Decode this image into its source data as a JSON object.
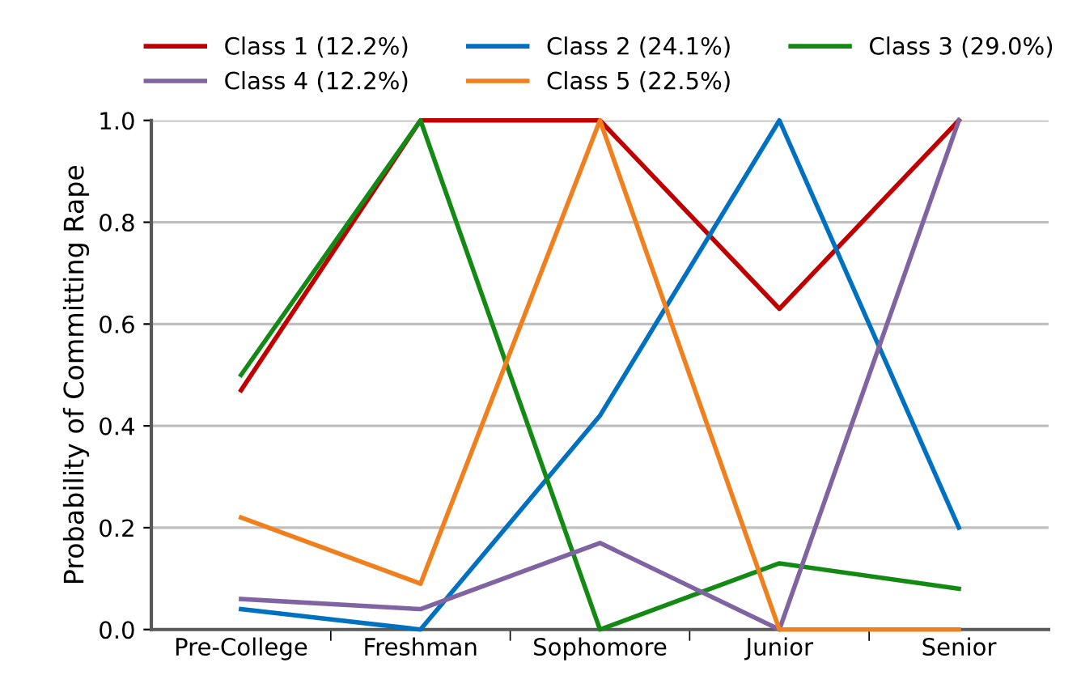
{
  "chart_data": {
    "type": "line",
    "ylabel": "Probability of Committing Rape",
    "categories": [
      "Pre-College",
      "Freshman",
      "Sophomore",
      "Junior",
      "Senior"
    ],
    "series": [
      {
        "name": "Class 1 (12.2%)",
        "color": "#c00000",
        "values": [
          0.47,
          1.0,
          1.0,
          0.63,
          1.0
        ]
      },
      {
        "name": "Class 2 (24.1%)",
        "color": "#0070c0",
        "values": [
          0.04,
          0.0,
          0.42,
          1.0,
          0.2
        ]
      },
      {
        "name": "Class 3 (29.0%)",
        "color": "#138a13",
        "values": [
          0.5,
          1.0,
          0.0,
          0.13,
          0.08
        ]
      },
      {
        "name": "Class 4 (12.2%)",
        "color": "#8064a2",
        "values": [
          0.06,
          0.04,
          0.17,
          0.0,
          1.0
        ]
      },
      {
        "name": "Class 5 (22.5%)",
        "color": "#f07f1e",
        "values": [
          0.22,
          0.09,
          1.0,
          0.0,
          0.0
        ]
      }
    ],
    "ylim": [
      0,
      1
    ],
    "yticks": [
      {
        "value": 0,
        "label": "0.0"
      },
      {
        "value": 0.2,
        "label": "0.2"
      },
      {
        "value": 0.4,
        "label": "0.4"
      },
      {
        "value": 0.6,
        "label": "0.6"
      },
      {
        "value": 0.8,
        "label": "0.8"
      },
      {
        "value": 1,
        "label": "1.0"
      }
    ],
    "grid": "y",
    "legend": "top",
    "marker": "none",
    "line_style": "solid"
  }
}
